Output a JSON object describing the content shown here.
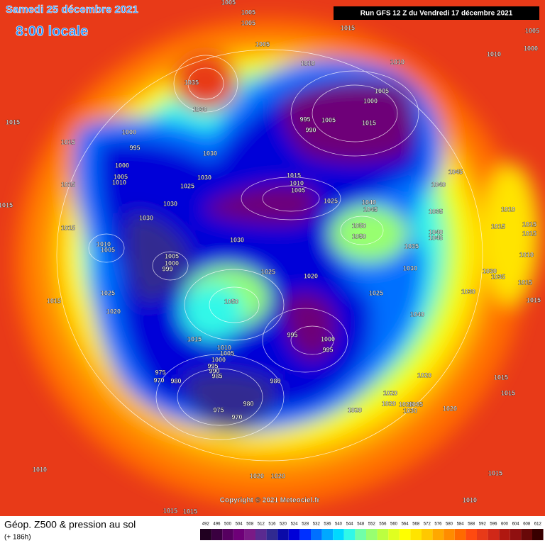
{
  "header": {
    "date": "Samedi 25 décembre 2021",
    "time": "8:00 locale",
    "run": "Run GFS 12 Z du Vendredi 17 décembre 2021"
  },
  "map": {
    "copyright": "Copyright © 2021 Meteociel.fr",
    "pressure_labels": [
      1005,
      1005,
      1005,
      1015,
      1005,
      1005,
      1000,
      1010,
      1010,
      1010,
      1035,
      1005,
      1000,
      1030,
      995,
      1005,
      990,
      1015,
      1015,
      1000,
      995,
      1015,
      1030,
      1000,
      1005,
      1010,
      1030,
      1025,
      1015,
      1010,
      1005,
      1045,
      1040,
      1015,
      1015,
      1030,
      1025,
      1040,
      1045,
      1035,
      1030,
      1010,
      1015,
      1050,
      1050,
      1040,
      1045,
      1015,
      1030,
      1010,
      1005,
      1005,
      1000,
      999,
      1035,
      1025,
      1030,
      1030,
      1035,
      1020,
      1025,
      1015,
      1030,
      1025,
      1050,
      1020,
      1040,
      995,
      1015,
      1000,
      995,
      1010,
      1005,
      1000,
      995,
      990,
      985,
      975,
      970,
      980,
      980,
      1020,
      1020,
      1020,
      1025,
      1035,
      1030,
      1020,
      975,
      980,
      970,
      1020,
      1015,
      1015,
      1010,
      1020,
      1020,
      1015,
      1010,
      1015,
      1015,
      1015,
      1015,
      1010,
      1015,
      1015
    ]
  },
  "footer": {
    "title": "Géop. Z500 & pression au sol",
    "lead": "(+ 186h)"
  },
  "colorbar": {
    "ticks": [
      492,
      496,
      500,
      504,
      508,
      512,
      516,
      520,
      524,
      528,
      532,
      536,
      540,
      544,
      548,
      552,
      556,
      560,
      564,
      568,
      572,
      576,
      580,
      584,
      588,
      592,
      596,
      600,
      604,
      608,
      612
    ],
    "colors": [
      "#200020",
      "#3a0040",
      "#560060",
      "#6e0078",
      "#7a1a86",
      "#5a2a90",
      "#302a90",
      "#0a0aa8",
      "#0000d8",
      "#0030ff",
      "#0070ff",
      "#00a8ff",
      "#00d8ff",
      "#30f8e8",
      "#70ffa8",
      "#98ff70",
      "#bcff40",
      "#e0ff20",
      "#ffff00",
      "#ffe400",
      "#ffc800",
      "#ffa800",
      "#ff8c00",
      "#ff6a00",
      "#ff4a10",
      "#e83a18",
      "#d02818",
      "#b01810",
      "#901010",
      "#680808",
      "#380000"
    ]
  }
}
